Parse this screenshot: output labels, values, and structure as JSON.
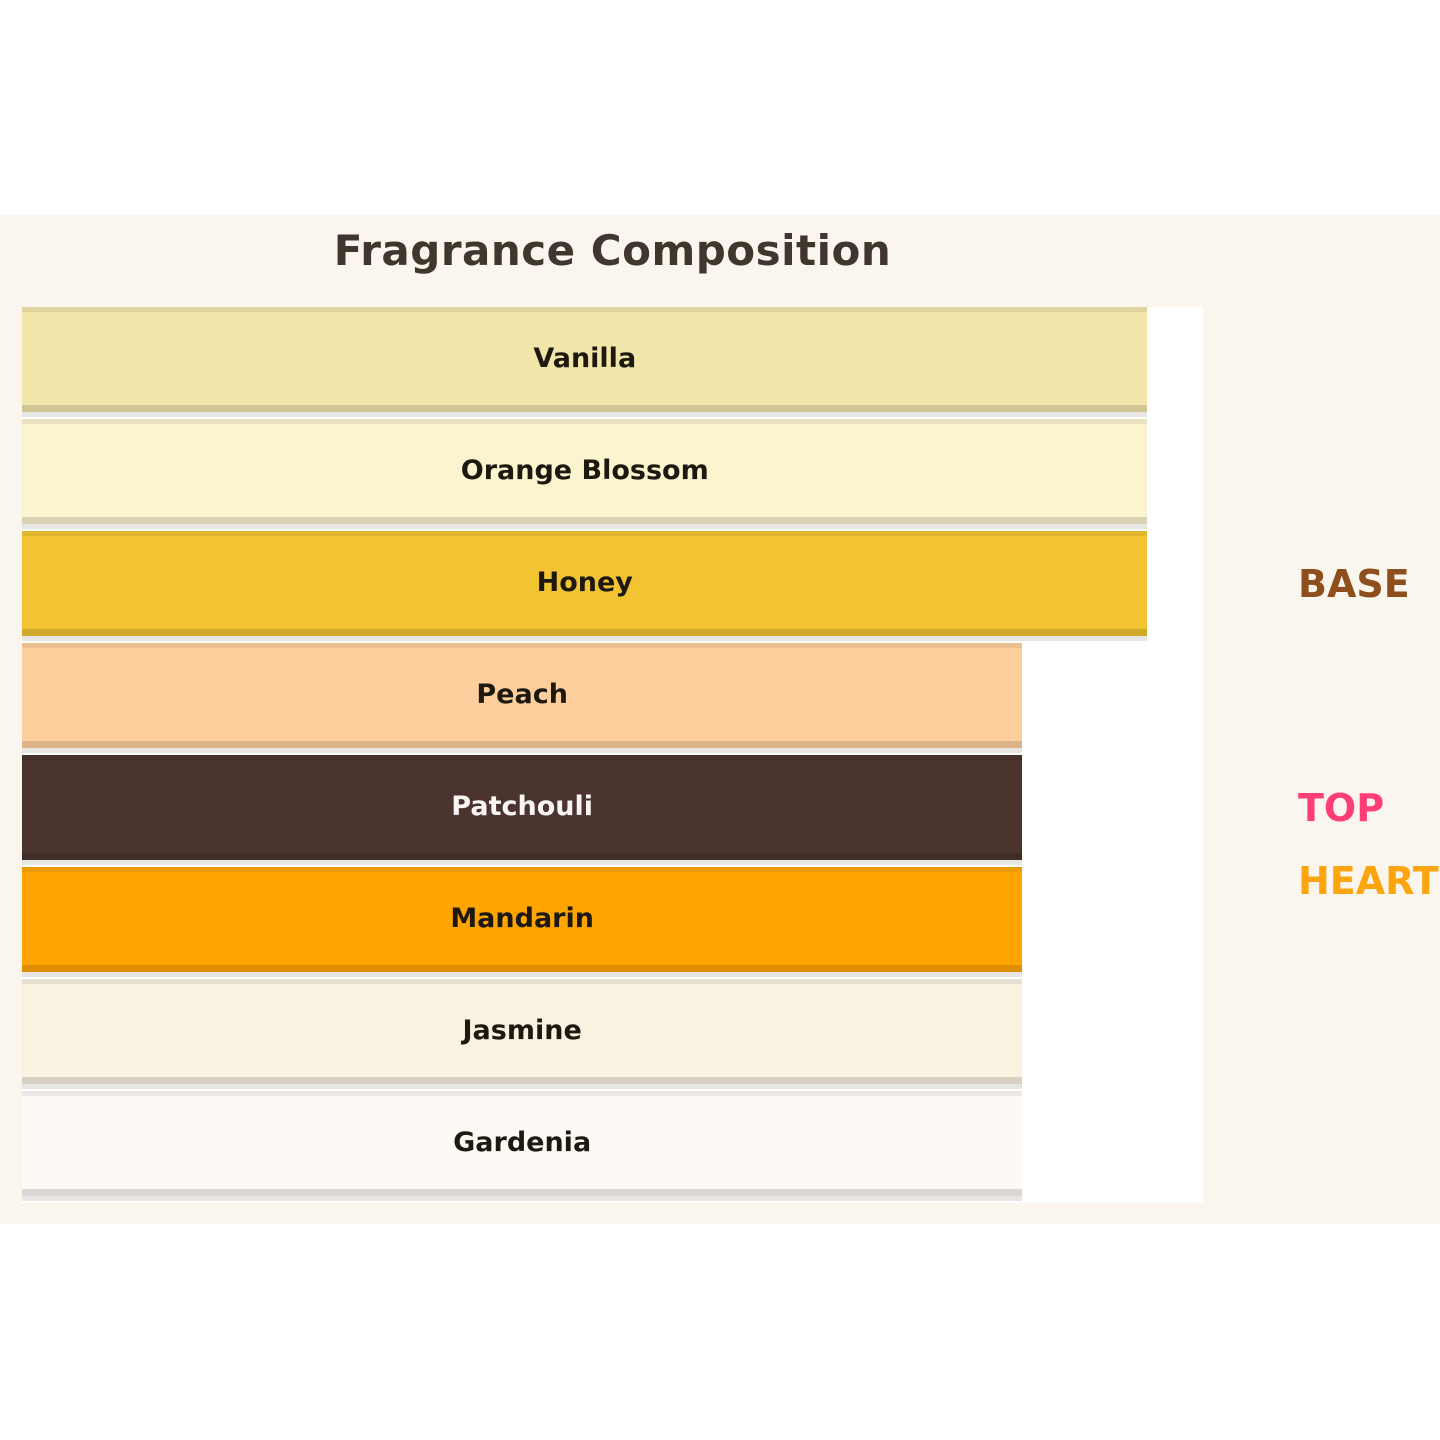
{
  "title": "Fragrance Composition",
  "colors": {
    "page_background": "#FFFFFF",
    "band_background": "#FBF6ED",
    "plot_background": "#FFFFFF",
    "title_color": "#41362E"
  },
  "bars": [
    {
      "label": "Vanilla",
      "fill": "#F2E5AA",
      "text": "#1E1910",
      "width_pct": 95.3
    },
    {
      "label": "Orange Blossom",
      "fill": "#FBF4CF",
      "text": "#1E1910",
      "width_pct": 95.3
    },
    {
      "label": "Honey",
      "fill": "#F2C431",
      "text": "#1E1910",
      "width_pct": 95.3
    },
    {
      "label": "Peach",
      "fill": "#FECE9D",
      "text": "#1E1910",
      "width_pct": 84.7
    },
    {
      "label": "Patchouli",
      "fill": "#4B342E",
      "text": "#F8F5F2",
      "width_pct": 84.7
    },
    {
      "label": "Mandarin",
      "fill": "#FFA502",
      "text": "#1E1910",
      "width_pct": 84.7
    },
    {
      "label": "Jasmine",
      "fill": "#FAF2E1",
      "text": "#1E1910",
      "width_pct": 84.7
    },
    {
      "label": "Gardenia",
      "fill": "#FDF9F5",
      "text": "#1E1910",
      "width_pct": 84.7
    }
  ],
  "group_labels": [
    {
      "text": "BASE",
      "color": "#8F4E1D"
    },
    {
      "text": "TOP",
      "color": "#FF3D77"
    },
    {
      "text": "HEART",
      "color": "#FCA50F"
    }
  ],
  "chart_data": {
    "type": "bar",
    "orientation": "horizontal",
    "title": "Fragrance Composition",
    "categories": [
      "Vanilla",
      "Orange Blossom",
      "Honey",
      "Peach",
      "Patchouli",
      "Mandarin",
      "Jasmine",
      "Gardenia"
    ],
    "values": [
      95.3,
      95.3,
      95.3,
      84.7,
      84.7,
      84.7,
      84.7,
      84.7
    ],
    "bar_colors": [
      "#F2E5AA",
      "#FBF4CF",
      "#F2C431",
      "#FECE9D",
      "#4B342E",
      "#FFA502",
      "#FAF2E1",
      "#FDF9F5"
    ],
    "annotations": [
      {
        "text": "BASE",
        "color": "#8F4E1D",
        "position": "right, aligned with Honey row"
      },
      {
        "text": "TOP",
        "color": "#FF3D77",
        "position": "right, aligned with Patchouli row"
      },
      {
        "text": "HEART",
        "color": "#FCA50F",
        "position": "right, between Patchouli and Mandarin rows"
      }
    ],
    "xlabel": "",
    "ylabel": "",
    "grid": false,
    "axis_ticks": "none",
    "legend_position": "right"
  }
}
